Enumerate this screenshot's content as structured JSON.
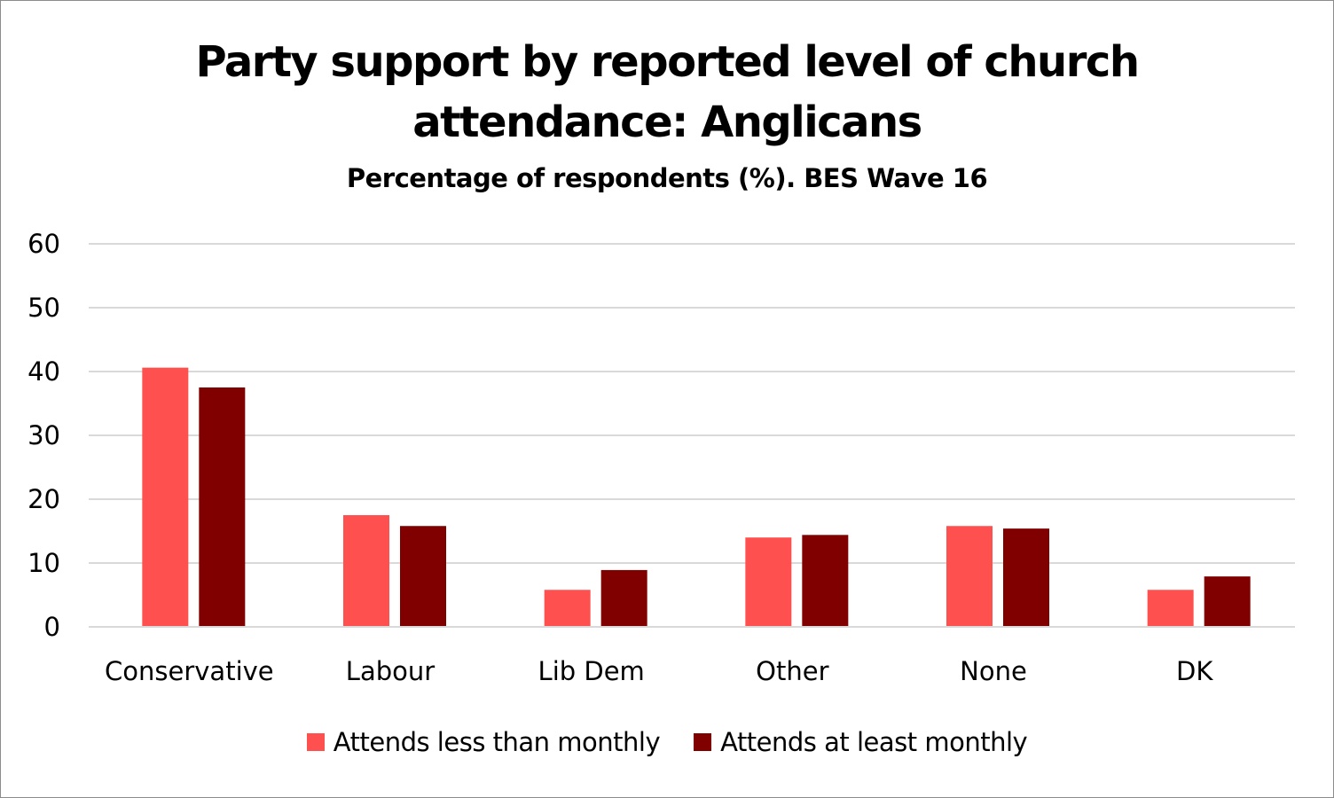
{
  "chart_data": {
    "type": "bar",
    "title": "Party support by reported level of church attendance: Anglicans",
    "title_lines": [
      "Party support by reported level of church",
      "attendance: Anglicans"
    ],
    "subtitle": "Percentage of respondents (%). BES  Wave 16",
    "xlabel": "",
    "ylabel": "",
    "ylim": [
      0,
      60
    ],
    "yticks": [
      0,
      10,
      20,
      30,
      40,
      50,
      60
    ],
    "grid": true,
    "legend_position": "bottom",
    "categories": [
      "Conservative",
      "Labour",
      "Lib Dem",
      "Other",
      "None",
      "DK"
    ],
    "series": [
      {
        "name": "Attends less than monthly",
        "color": "#ff5050",
        "values": [
          40.6,
          17.5,
          5.8,
          14.0,
          15.8,
          5.8
        ]
      },
      {
        "name": "Attends at least monthly",
        "color": "#800000",
        "values": [
          37.5,
          15.8,
          8.9,
          14.4,
          15.4,
          7.9
        ]
      }
    ]
  }
}
